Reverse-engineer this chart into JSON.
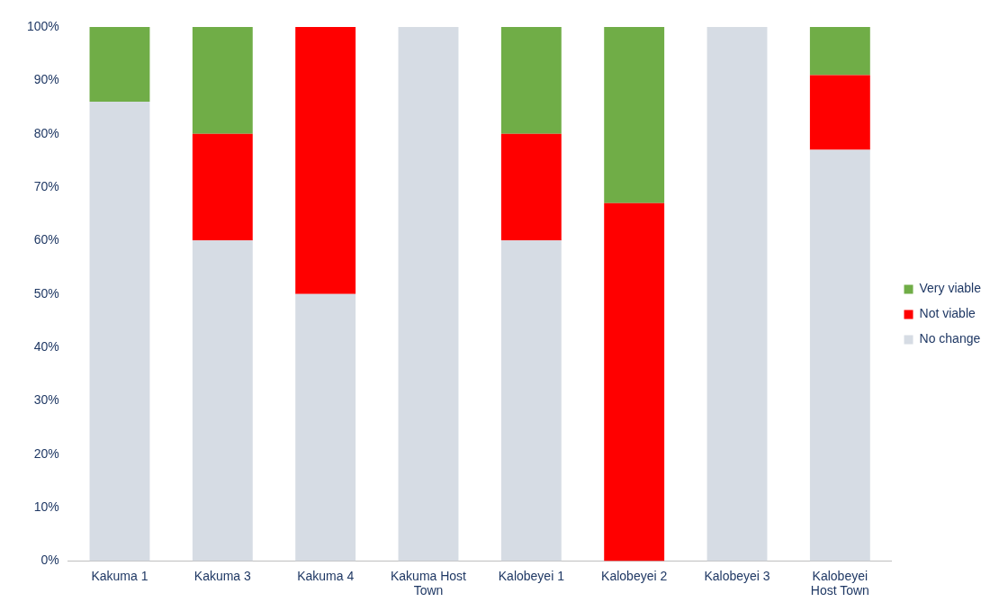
{
  "chart_data": {
    "type": "bar",
    "stacked": true,
    "legend": "right",
    "grid": false,
    "categories": [
      "Kakuma 1",
      "Kakuma 3",
      "Kakuma 4",
      "Kakuma Host Town",
      "Kalobeyei 1",
      "Kalobeyei 2",
      "Kalobeyei 3",
      "Kalobeyei Host Town"
    ],
    "series": [
      {
        "name": "No change",
        "color": "#d6dce4",
        "values": [
          86,
          60,
          50,
          100,
          60,
          0,
          100,
          77
        ]
      },
      {
        "name": "Not viable",
        "color": "#ff0000",
        "values": [
          0,
          20,
          50,
          0,
          20,
          67,
          0,
          14
        ]
      },
      {
        "name": "Very viable",
        "color": "#70ad47",
        "values": [
          14,
          20,
          0,
          0,
          20,
          33,
          0,
          9
        ]
      }
    ],
    "ylim": [
      0,
      100
    ],
    "yticks": [
      {
        "value": 0,
        "label": "0%"
      },
      {
        "value": 10,
        "label": "10%"
      },
      {
        "value": 20,
        "label": "20%"
      },
      {
        "value": 30,
        "label": "30%"
      },
      {
        "value": 40,
        "label": "40%"
      },
      {
        "value": 50,
        "label": "50%"
      },
      {
        "value": 60,
        "label": "60%"
      },
      {
        "value": 70,
        "label": "70%"
      },
      {
        "value": 80,
        "label": "80%"
      },
      {
        "value": 90,
        "label": "90%"
      },
      {
        "value": 100,
        "label": "100%"
      }
    ]
  }
}
